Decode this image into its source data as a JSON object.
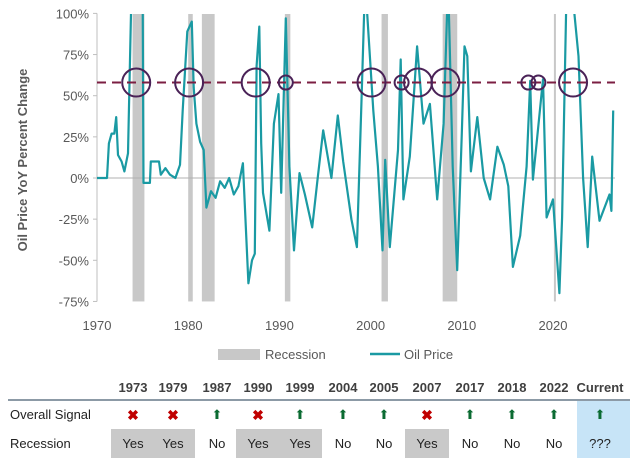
{
  "chart_data": {
    "type": "line",
    "ylabel": "Oil Price YoY Percent Change",
    "xlabel": "",
    "xlim": [
      1970,
      2026.8
    ],
    "ylim": [
      -75,
      100
    ],
    "x_ticks": [
      "1970",
      "1980",
      "1990",
      "2000",
      "2010",
      "2020"
    ],
    "y_ticks": [
      "100%",
      "75%",
      "50%",
      "25%",
      "0%",
      "-25%",
      "-50%",
      "-75%"
    ],
    "y_tick_values": [
      100,
      75,
      50,
      25,
      0,
      -25,
      -50,
      -75
    ],
    "x_tick_values": [
      1970,
      1980,
      1990,
      2000,
      2010,
      2020
    ],
    "legend": {
      "position": "bottom",
      "entries": [
        "Recession",
        "Oil Price"
      ]
    },
    "threshold": 58,
    "colors": {
      "oil": "#1a9aa3",
      "recession": "#c8c8c8",
      "threshold": "#7b1e42",
      "circle": "#4a2257"
    },
    "recessions": [
      [
        1973.9,
        1975.2
      ],
      [
        1980.0,
        1980.5
      ],
      [
        1981.5,
        1982.9
      ],
      [
        1990.6,
        1991.2
      ],
      [
        2001.2,
        2001.9
      ],
      [
        2007.9,
        2009.5
      ],
      [
        2020.1,
        2020.3
      ]
    ],
    "signal_years": [
      1974.3,
      1980.1,
      1987.4,
      1990.7,
      2000.1,
      2003.4,
      2005.2,
      2008.2,
      2017.3,
      2018.4,
      2022.2
    ],
    "signal_circle_small": [
      false,
      false,
      false,
      true,
      false,
      true,
      false,
      false,
      true,
      true,
      false
    ],
    "series": [
      {
        "name": "Oil Price",
        "points": [
          [
            1970,
            0
          ],
          [
            1971.1,
            0
          ],
          [
            1971.3,
            21
          ],
          [
            1971.6,
            27
          ],
          [
            1971.9,
            27
          ],
          [
            1972.1,
            37
          ],
          [
            1972.3,
            14
          ],
          [
            1972.7,
            10
          ],
          [
            1973,
            4
          ],
          [
            1973.4,
            15
          ],
          [
            1973.8,
            120
          ],
          [
            1975,
            120
          ],
          [
            1975.1,
            -3
          ],
          [
            1975.8,
            -3
          ],
          [
            1975.9,
            10
          ],
          [
            1976.8,
            10
          ],
          [
            1977,
            2
          ],
          [
            1977.5,
            6
          ],
          [
            1978,
            2
          ],
          [
            1978.6,
            0
          ],
          [
            1979.1,
            8
          ],
          [
            1979.4,
            41
          ],
          [
            1979.9,
            89
          ],
          [
            1980.4,
            95
          ],
          [
            1980.6,
            55
          ],
          [
            1980.9,
            33
          ],
          [
            1981.3,
            22
          ],
          [
            1981.7,
            17
          ],
          [
            1982,
            -18
          ],
          [
            1982.5,
            -8
          ],
          [
            1983,
            -12
          ],
          [
            1983.5,
            -2
          ],
          [
            1984,
            -6
          ],
          [
            1984.5,
            0
          ],
          [
            1985,
            -10
          ],
          [
            1985.5,
            -5
          ],
          [
            1986,
            9
          ],
          [
            1986.6,
            -64
          ],
          [
            1987,
            -50
          ],
          [
            1987.3,
            -46
          ],
          [
            1987.5,
            68
          ],
          [
            1987.8,
            92
          ],
          [
            1988,
            21
          ],
          [
            1988.2,
            -9
          ],
          [
            1988.9,
            -32
          ],
          [
            1989.4,
            33
          ],
          [
            1989.9,
            51
          ],
          [
            1990.2,
            -9
          ],
          [
            1990.7,
            97
          ],
          [
            1991.1,
            7
          ],
          [
            1991.6,
            -44
          ],
          [
            1992.2,
            3
          ],
          [
            1992.8,
            -10
          ],
          [
            1993.6,
            -30
          ],
          [
            1994.2,
            0
          ],
          [
            1994.8,
            29
          ],
          [
            1995.7,
            0
          ],
          [
            1996.4,
            38
          ],
          [
            1997,
            10
          ],
          [
            1997.9,
            -25
          ],
          [
            1998.5,
            -42
          ],
          [
            1999,
            47
          ],
          [
            1999.4,
            120
          ],
          [
            2000.3,
            41
          ],
          [
            2000.8,
            7
          ],
          [
            2001.3,
            -44
          ],
          [
            2001.6,
            11
          ],
          [
            2002.1,
            -42
          ],
          [
            2003,
            17
          ],
          [
            2003.3,
            72
          ],
          [
            2003.6,
            -13
          ],
          [
            2004.3,
            13
          ],
          [
            2005.1,
            80
          ],
          [
            2005.8,
            33
          ],
          [
            2006.5,
            45
          ],
          [
            2007.3,
            -13
          ],
          [
            2008,
            33
          ],
          [
            2008.5,
            120
          ],
          [
            2009,
            7
          ],
          [
            2009.5,
            -56
          ],
          [
            2010,
            27
          ],
          [
            2010.3,
            80
          ],
          [
            2010.6,
            74
          ],
          [
            2011,
            4
          ],
          [
            2011.7,
            37
          ],
          [
            2012.4,
            0
          ],
          [
            2013.1,
            -13
          ],
          [
            2013.9,
            19
          ],
          [
            2014.6,
            8
          ],
          [
            2015.1,
            -5
          ],
          [
            2015.6,
            -54
          ],
          [
            2016.4,
            -35
          ],
          [
            2017.1,
            7
          ],
          [
            2017.5,
            59
          ],
          [
            2017.8,
            -1
          ],
          [
            2018.2,
            21
          ],
          [
            2018.9,
            60
          ],
          [
            2019.3,
            -24
          ],
          [
            2020,
            -13
          ],
          [
            2020.7,
            -70
          ],
          [
            2021,
            -24
          ],
          [
            2021.5,
            120
          ],
          [
            2022,
            120
          ],
          [
            2022.8,
            74
          ],
          [
            2023.3,
            0
          ],
          [
            2023.8,
            -42
          ],
          [
            2024.3,
            13
          ],
          [
            2025.1,
            -26
          ],
          [
            2026.2,
            -10
          ],
          [
            2026.4,
            -20
          ],
          [
            2026.6,
            41
          ]
        ]
      }
    ]
  },
  "table": {
    "columns": [
      "1973",
      "1979",
      "1987",
      "1990",
      "1999",
      "2004",
      "2005",
      "2007",
      "2017",
      "2018",
      "2022",
      "Current"
    ],
    "row_labels": {
      "signal": "Overall Signal",
      "recession": "Recession"
    },
    "signal": [
      "x",
      "x",
      "up",
      "x",
      "up",
      "up",
      "up",
      "x",
      "up",
      "up",
      "up",
      "up"
    ],
    "signal_glyphs": {
      "x": "✖",
      "up": "⬆"
    },
    "recession": [
      "Yes",
      "Yes",
      "No",
      "Yes",
      "Yes",
      "No",
      "No",
      "Yes",
      "No",
      "No",
      "No",
      "???"
    ]
  }
}
